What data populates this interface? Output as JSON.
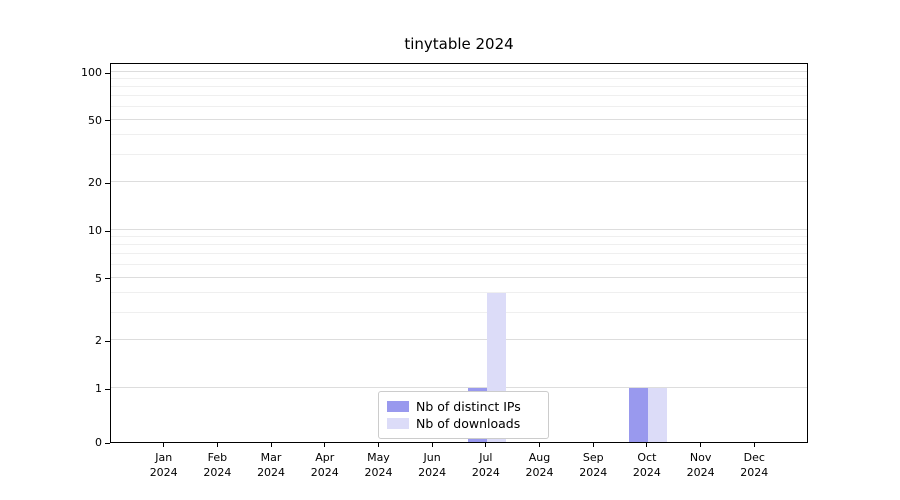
{
  "chart_data": {
    "type": "bar",
    "title": "tinytable 2024",
    "year": "2024",
    "categories": [
      "Jan",
      "Feb",
      "Mar",
      "Apr",
      "May",
      "Jun",
      "Jul",
      "Aug",
      "Sep",
      "Oct",
      "Nov",
      "Dec"
    ],
    "series": [
      {
        "name": "Nb of distinct IPs",
        "color": "#9999ee",
        "values": [
          0,
          0,
          0,
          0,
          0,
          0,
          1,
          0,
          0,
          1,
          0,
          0
        ]
      },
      {
        "name": "Nb of downloads",
        "color": "#dcdcf8",
        "values": [
          0,
          0,
          0,
          0,
          0,
          0,
          4,
          0,
          0,
          1,
          0,
          0
        ]
      }
    ],
    "y_ticks": [
      0,
      1,
      2,
      5,
      10,
      20,
      50,
      100
    ],
    "y_scale": "log-with-zero-baseline",
    "ylim": [
      0,
      100
    ],
    "grid": true,
    "legend_position": "bottom-center"
  }
}
